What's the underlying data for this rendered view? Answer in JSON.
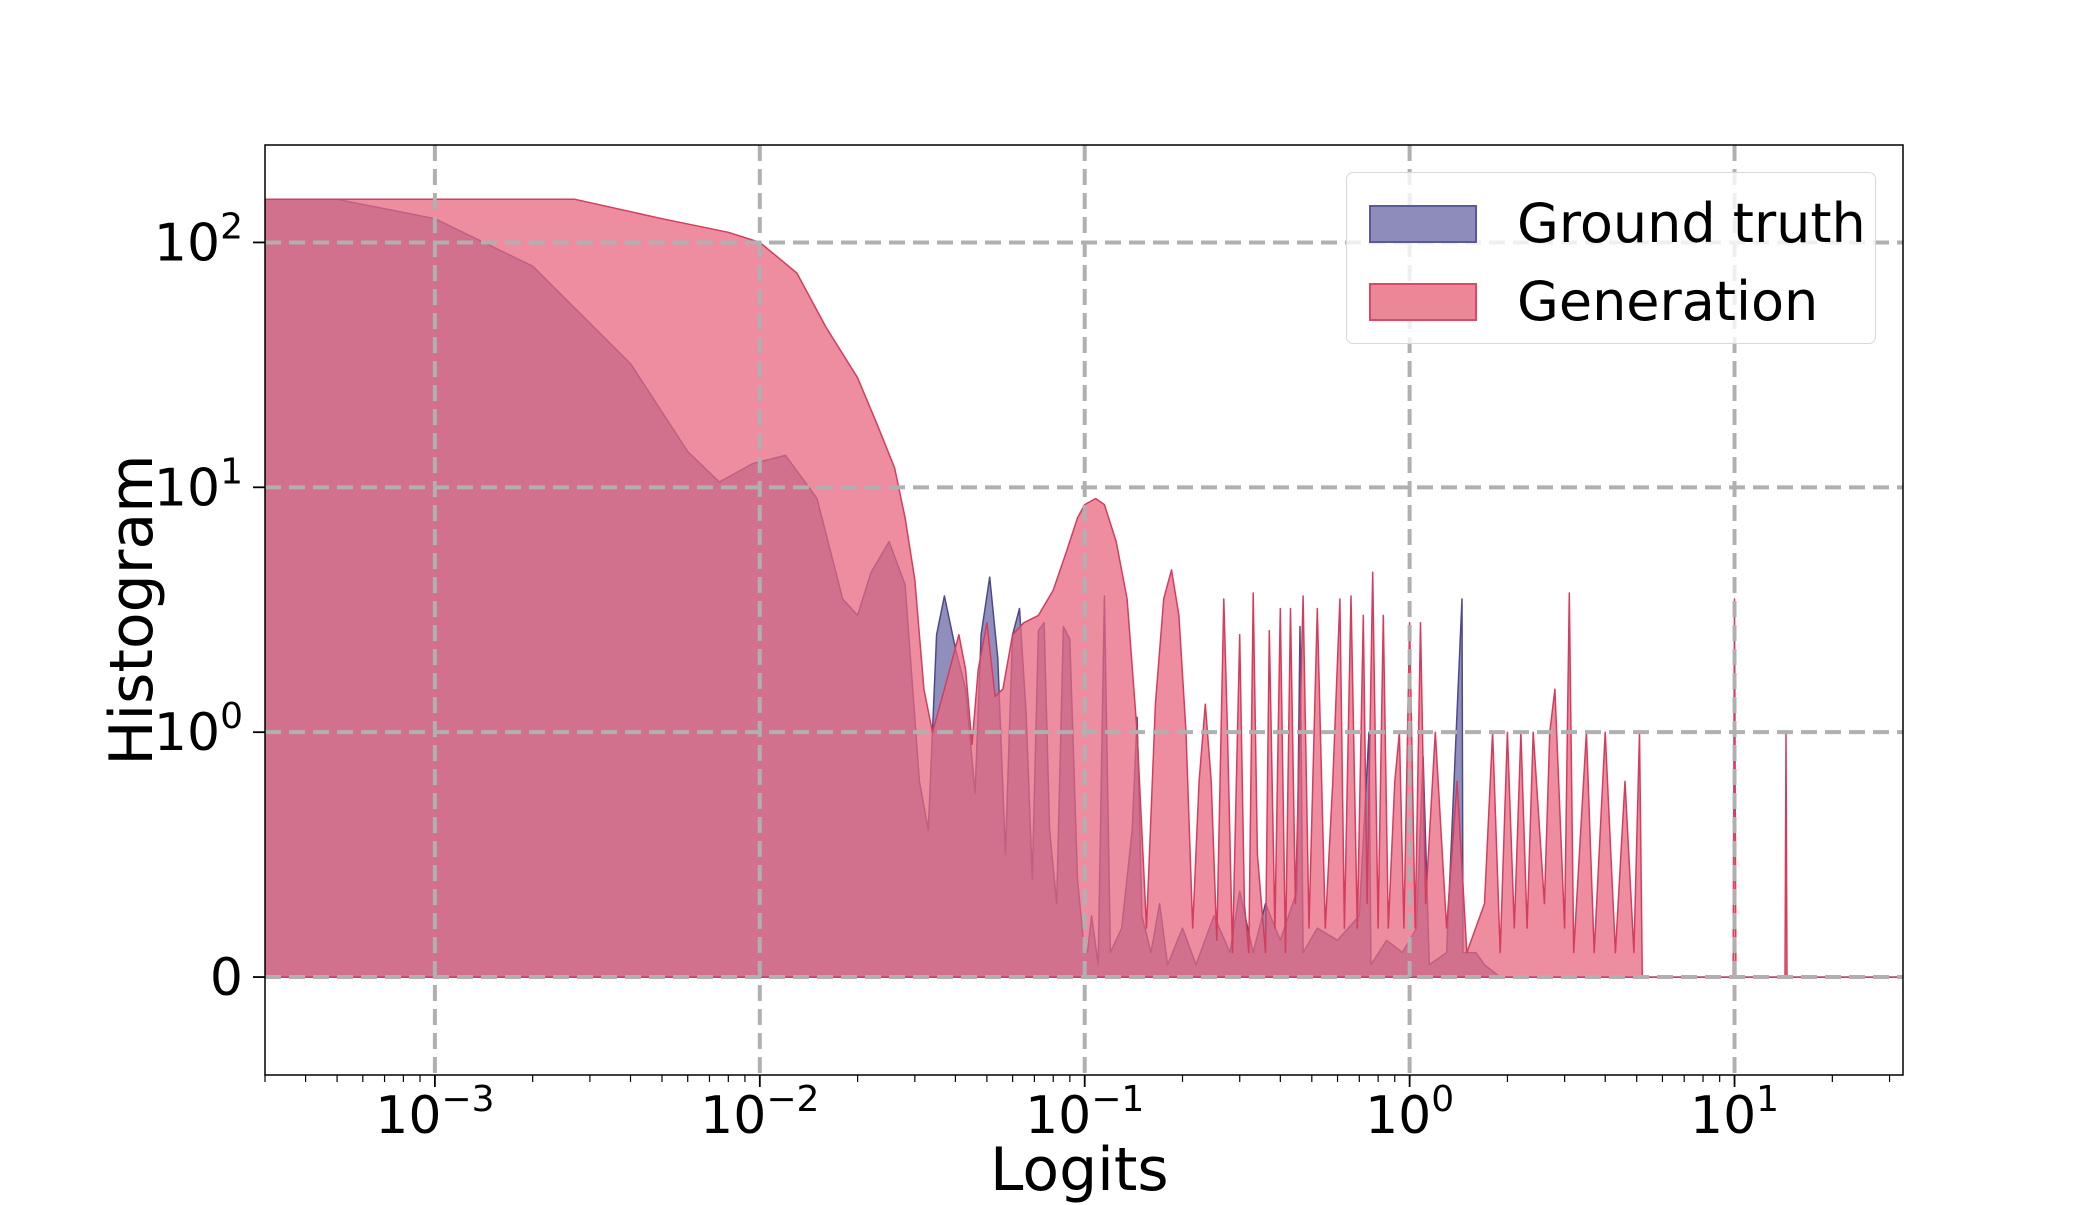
{
  "colors": {
    "ground_truth": "#6b6aa5",
    "generation": "#e8677f",
    "grid": "#b0b0b0"
  },
  "legend": {
    "items": [
      {
        "label": "Ground truth",
        "color": "#8d8cba",
        "edge": "#5a5a9a"
      },
      {
        "label": "Generation",
        "color": "#ec8798",
        "edge": "#d84a66"
      }
    ]
  },
  "chart_data": {
    "type": "area",
    "xlabel": "Logits",
    "ylabel": "Histogram",
    "xscale": "log",
    "yscale": "symlog",
    "xlim": [
      0.0003,
      33
    ],
    "ylim": [
      -0.4,
      250
    ],
    "grid": true,
    "legend_position": "top-right",
    "xticks": [
      {
        "base": "10",
        "exp": "−3",
        "value": 0.001
      },
      {
        "base": "10",
        "exp": "−2",
        "value": 0.01
      },
      {
        "base": "10",
        "exp": "−1",
        "value": 0.1
      },
      {
        "base": "10",
        "exp": "0",
        "value": 1
      },
      {
        "base": "10",
        "exp": "1",
        "value": 10
      }
    ],
    "yticks": [
      {
        "base": "0",
        "exp": "",
        "value": 0
      },
      {
        "base": "10",
        "exp": "0",
        "value": 1
      },
      {
        "base": "10",
        "exp": "1",
        "value": 10
      },
      {
        "base": "10",
        "exp": "2",
        "value": 100
      }
    ],
    "series": [
      {
        "name": "Ground truth",
        "points": [
          [
            0.0003,
            150
          ],
          [
            0.0005,
            150
          ],
          [
            0.001,
            125
          ],
          [
            0.002,
            80
          ],
          [
            0.004,
            32
          ],
          [
            0.006,
            14
          ],
          [
            0.0075,
            10.5
          ],
          [
            0.0095,
            12.5
          ],
          [
            0.012,
            13.5
          ],
          [
            0.015,
            9
          ],
          [
            0.018,
            3.5
          ],
          [
            0.02,
            3
          ],
          [
            0.022,
            4.5
          ],
          [
            0.025,
            6
          ],
          [
            0.028,
            4
          ],
          [
            0.031,
            0.8
          ],
          [
            0.033,
            0.6
          ],
          [
            0.035,
            2.5
          ],
          [
            0.037,
            3.6
          ],
          [
            0.04,
            2.2
          ],
          [
            0.043,
            1.5
          ],
          [
            0.046,
            0.75
          ],
          [
            0.048,
            2.5
          ],
          [
            0.051,
            4.3
          ],
          [
            0.054,
            2
          ],
          [
            0.057,
            0.5
          ],
          [
            0.06,
            2.5
          ],
          [
            0.063,
            3.2
          ],
          [
            0.066,
            1.2
          ],
          [
            0.069,
            0.4
          ],
          [
            0.072,
            2.6
          ],
          [
            0.075,
            2.8
          ],
          [
            0.078,
            0.6
          ],
          [
            0.082,
            0.3
          ],
          [
            0.086,
            2.7
          ],
          [
            0.09,
            2.4
          ],
          [
            0.095,
            0.4
          ],
          [
            0.099,
            0.15
          ],
          [
            0.102,
            0.1
          ],
          [
            0.105,
            0.25
          ],
          [
            0.11,
            0.05
          ],
          [
            0.115,
            3.6
          ],
          [
            0.12,
            0.1
          ],
          [
            0.13,
            0.2
          ],
          [
            0.14,
            0.6
          ],
          [
            0.145,
            1.15
          ],
          [
            0.15,
            0.25
          ],
          [
            0.16,
            0.1
          ],
          [
            0.17,
            0.3
          ],
          [
            0.18,
            0.05
          ],
          [
            0.2,
            0.2
          ],
          [
            0.22,
            0.05
          ],
          [
            0.25,
            0.25
          ],
          [
            0.28,
            0.1
          ],
          [
            0.3,
            0.35
          ],
          [
            0.33,
            0.1
          ],
          [
            0.36,
            0.3
          ],
          [
            0.4,
            0.15
          ],
          [
            0.45,
            0.35
          ],
          [
            0.46,
            2.7
          ],
          [
            0.47,
            0.1
          ],
          [
            0.52,
            0.2
          ],
          [
            0.6,
            0.15
          ],
          [
            0.7,
            0.25
          ],
          [
            0.75,
            1.0
          ],
          [
            0.76,
            0.05
          ],
          [
            0.85,
            0.15
          ],
          [
            0.95,
            0.1
          ],
          [
            1.05,
            0.2
          ],
          [
            1.1,
            0.9
          ],
          [
            1.15,
            0.05
          ],
          [
            1.3,
            0.1
          ],
          [
            1.45,
            3.5
          ],
          [
            1.46,
            0.1
          ],
          [
            1.6,
            0.1
          ],
          [
            1.7,
            0.05
          ],
          [
            1.9,
            0
          ],
          [
            33,
            0
          ]
        ]
      },
      {
        "name": "Generation",
        "points": [
          [
            0.0003,
            150
          ],
          [
            0.001,
            150
          ],
          [
            0.0027,
            150
          ],
          [
            0.005,
            125
          ],
          [
            0.008,
            110
          ],
          [
            0.01,
            100
          ],
          [
            0.013,
            75
          ],
          [
            0.016,
            45
          ],
          [
            0.02,
            28
          ],
          [
            0.023,
            18
          ],
          [
            0.026,
            12
          ],
          [
            0.028,
            7.5
          ],
          [
            0.03,
            4.2
          ],
          [
            0.032,
            1.5
          ],
          [
            0.034,
            1
          ],
          [
            0.037,
            1.5
          ],
          [
            0.041,
            2.5
          ],
          [
            0.043,
            1.8
          ],
          [
            0.045,
            0.95
          ],
          [
            0.047,
            1.8
          ],
          [
            0.05,
            2.8
          ],
          [
            0.053,
            1.4
          ],
          [
            0.056,
            1.5
          ],
          [
            0.06,
            2.5
          ],
          [
            0.065,
            2.8
          ],
          [
            0.072,
            3.0
          ],
          [
            0.08,
            3.8
          ],
          [
            0.088,
            5.5
          ],
          [
            0.095,
            7.5
          ],
          [
            0.1,
            8.5
          ],
          [
            0.108,
            9
          ],
          [
            0.115,
            8.5
          ],
          [
            0.125,
            6
          ],
          [
            0.135,
            3.5
          ],
          [
            0.145,
            1
          ],
          [
            0.155,
            0.2
          ],
          [
            0.165,
            1.3
          ],
          [
            0.175,
            3.5
          ],
          [
            0.185,
            4.6
          ],
          [
            0.195,
            3
          ],
          [
            0.205,
            1
          ],
          [
            0.215,
            0.2
          ],
          [
            0.225,
            0.8
          ],
          [
            0.235,
            1.3
          ],
          [
            0.245,
            0.8
          ],
          [
            0.255,
            0.15
          ],
          [
            0.268,
            3.5
          ],
          [
            0.275,
            1
          ],
          [
            0.285,
            0.1
          ],
          [
            0.3,
            2.5
          ],
          [
            0.31,
            0.3
          ],
          [
            0.32,
            0.1
          ],
          [
            0.33,
            3.7
          ],
          [
            0.34,
            0.5
          ],
          [
            0.36,
            0.1
          ],
          [
            0.37,
            2.6
          ],
          [
            0.385,
            0.2
          ],
          [
            0.4,
            3.2
          ],
          [
            0.415,
            0.1
          ],
          [
            0.43,
            3.2
          ],
          [
            0.445,
            0.3
          ],
          [
            0.47,
            3.6
          ],
          [
            0.49,
            0.2
          ],
          [
            0.52,
            3.2
          ],
          [
            0.55,
            0.2
          ],
          [
            0.58,
            0.8
          ],
          [
            0.61,
            3.5
          ],
          [
            0.63,
            0.2
          ],
          [
            0.66,
            3.6
          ],
          [
            0.69,
            0.2
          ],
          [
            0.72,
            3.0
          ],
          [
            0.74,
            0.3
          ],
          [
            0.77,
            4.5
          ],
          [
            0.8,
            0.2
          ],
          [
            0.83,
            3.0
          ],
          [
            0.86,
            0.2
          ],
          [
            0.9,
            0.8
          ],
          [
            0.93,
            1.0
          ],
          [
            0.96,
            0.2
          ],
          [
            1.0,
            2.8
          ],
          [
            1.04,
            0.2
          ],
          [
            1.08,
            2.8
          ],
          [
            1.12,
            0.3
          ],
          [
            1.2,
            1.0
          ],
          [
            1.3,
            0.2
          ],
          [
            1.4,
            0.8
          ],
          [
            1.5,
            0.1
          ],
          [
            1.7,
            0.3
          ],
          [
            1.8,
            1.0
          ],
          [
            1.9,
            0.1
          ],
          [
            2.0,
            1.0
          ],
          [
            2.1,
            0.2
          ],
          [
            2.2,
            1.0
          ],
          [
            2.3,
            0.2
          ],
          [
            2.4,
            1.0
          ],
          [
            2.6,
            0.3
          ],
          [
            2.7,
            1.0
          ],
          [
            2.8,
            1.5
          ],
          [
            3.0,
            0.2
          ],
          [
            3.1,
            3.7
          ],
          [
            3.2,
            0.1
          ],
          [
            3.5,
            1.0
          ],
          [
            3.7,
            0.1
          ],
          [
            4.0,
            1.0
          ],
          [
            4.3,
            0.1
          ],
          [
            4.6,
            0.8
          ],
          [
            4.9,
            0.1
          ],
          [
            5.1,
            1.0
          ],
          [
            5.2,
            0
          ],
          [
            9.9,
            0
          ],
          [
            10.0,
            3.5
          ],
          [
            10.1,
            0
          ],
          [
            14.3,
            0
          ],
          [
            14.4,
            1.0
          ],
          [
            14.5,
            0
          ],
          [
            33,
            0
          ]
        ]
      }
    ]
  }
}
